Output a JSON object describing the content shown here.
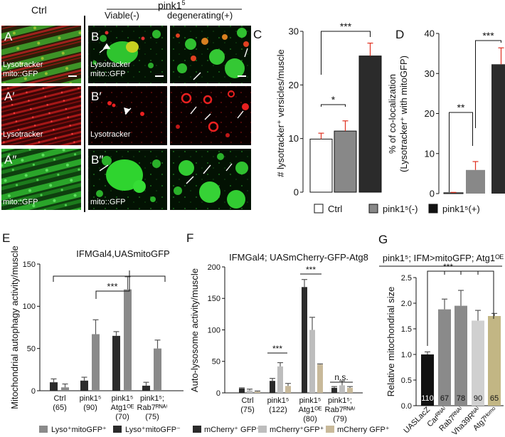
{
  "header": {
    "ctrl": "Ctrl",
    "pink": "pink1",
    "pink_sup": "5",
    "viable": "Viable(-)",
    "degenerating": "degenerating(+)"
  },
  "micro": {
    "A": "A",
    "A1": "A′",
    "A2": "A″",
    "B": "B",
    "B1": "B′",
    "B2": "B″",
    "lysotracker": "Lysotracker",
    "mito_gfp": "mito::GFP"
  },
  "colors": {
    "green": "#2fb82f",
    "red": "#c81c1c",
    "bar_dark": "#2b2b2b",
    "bar_gray": "#8a8a8a",
    "bar_light": "#bdbdbd",
    "bar_tan": "#c8b99a",
    "bar_olive": "#c2b684",
    "error_red": "#e03020"
  },
  "chart_data": [
    {
      "panel": "C",
      "type": "bar",
      "categories": [
        "Ctrl",
        "pink1(-)",
        "pink1(+)"
      ],
      "values": [
        9.9,
        11.4,
        25.4
      ],
      "errors": [
        1.1,
        1.9,
        2.4
      ],
      "ylabel": "# lysotracker⁺ versicles/muscle",
      "ylim": [
        0,
        30
      ],
      "yticks": [
        "0",
        "10",
        "20",
        "30"
      ],
      "significance": [
        "*",
        "***"
      ],
      "legend": [
        "Ctrl",
        "pink1⁵(-)",
        "pink1⁵(+)"
      ]
    },
    {
      "panel": "D",
      "type": "bar",
      "categories": [
        "Ctrl",
        "pink1(-)",
        "pink1(+)"
      ],
      "values": [
        0.2,
        5.9,
        32.3
      ],
      "errors": [
        0.1,
        2.1,
        4.1
      ],
      "ylabel": "% of co-localization (Lysotracker⁺ with mitoGFP)",
      "ylim": [
        0,
        40
      ],
      "yticks": [
        "0",
        "10",
        "20",
        "30",
        "40"
      ],
      "significance": [
        "**",
        "***"
      ]
    },
    {
      "panel": "E",
      "type": "bar",
      "title": "IFMGal4,UASmitoGFP",
      "categories": [
        "Ctrl",
        "pink1⁵",
        "pink1⁵ Atg1ᴼᴱ",
        "pink1⁵; Rab7ᴿᴺᴬⁱ"
      ],
      "counts": [
        "(65)",
        "(90)",
        "(70)",
        "(75)"
      ],
      "series": [
        {
          "name": "Lyso⁺mitoGFP⁻",
          "values": [
            10,
            12,
            65,
            6
          ],
          "errors": [
            4,
            4,
            5,
            4
          ]
        },
        {
          "name": "Lyso⁺mitoGFP⁺",
          "values": [
            4,
            67,
            120,
            50
          ],
          "errors": [
            4,
            17,
            15,
            10
          ]
        }
      ],
      "ylabel": "Mitochondrial autophagy activity/muscle",
      "ylim": [
        0,
        150
      ],
      "yticks": [
        "0",
        "50",
        "100",
        "150"
      ],
      "significance": [
        "***"
      ]
    },
    {
      "panel": "F",
      "type": "bar",
      "title": "IFMGal4; UASmCherry-GFP-Atg8",
      "categories": [
        "Ctrl",
        "pink1⁵",
        "pink1⁵ Atg1ᴼᴱ",
        "pink1⁵; Rab7ᴿᴺᴬⁱ"
      ],
      "counts": [
        "(75)",
        "(122)",
        "(80)",
        "(79)"
      ],
      "series": [
        {
          "name": "mCherry⁺ GFP⁻",
          "values": [
            7,
            19,
            168,
            8
          ],
          "errors": [
            1,
            4,
            12,
            2
          ]
        },
        {
          "name": "mCherry⁺GFP⁺",
          "values": [
            4,
            42,
            100,
            12
          ],
          "errors": [
            2,
            6,
            20,
            7
          ]
        },
        {
          "name": "mCherry GFP⁺",
          "values": [
            2,
            11,
            45,
            8
          ],
          "errors": [
            1,
            4,
            1,
            2
          ]
        }
      ],
      "ylabel": "Auto-lysosome activity/muscle",
      "ylim": [
        0,
        200
      ],
      "yticks": [
        "0",
        "50",
        "100",
        "150",
        "200"
      ],
      "significance": [
        "***",
        "***",
        "n.s."
      ]
    },
    {
      "panel": "G",
      "type": "bar",
      "title": "pink1⁵; IFM>mitoGFP; Atg1ᴼᴱ",
      "categories": [
        "UASLacZ",
        "Carᴿᴺᴬⁱ",
        "Rab7ᴿᴺᴬⁱ",
        "Vha39Rᴺᴬⁱ",
        "Atg7ᴴᵒᵐᵒ"
      ],
      "counts": [
        "110",
        "67",
        "78",
        "90",
        "65"
      ],
      "values": [
        1.0,
        1.88,
        1.95,
        1.66,
        1.75
      ],
      "errors": [
        0.05,
        0.2,
        0.3,
        0.2,
        0.05
      ],
      "ylabel": "Relative mitochondrial size",
      "ylim": [
        0,
        2.5
      ],
      "yticks": [
        "0.0",
        "0.5",
        "1.0",
        "1.5",
        "2.0",
        "2.5"
      ],
      "significance": [
        "***"
      ]
    }
  ]
}
